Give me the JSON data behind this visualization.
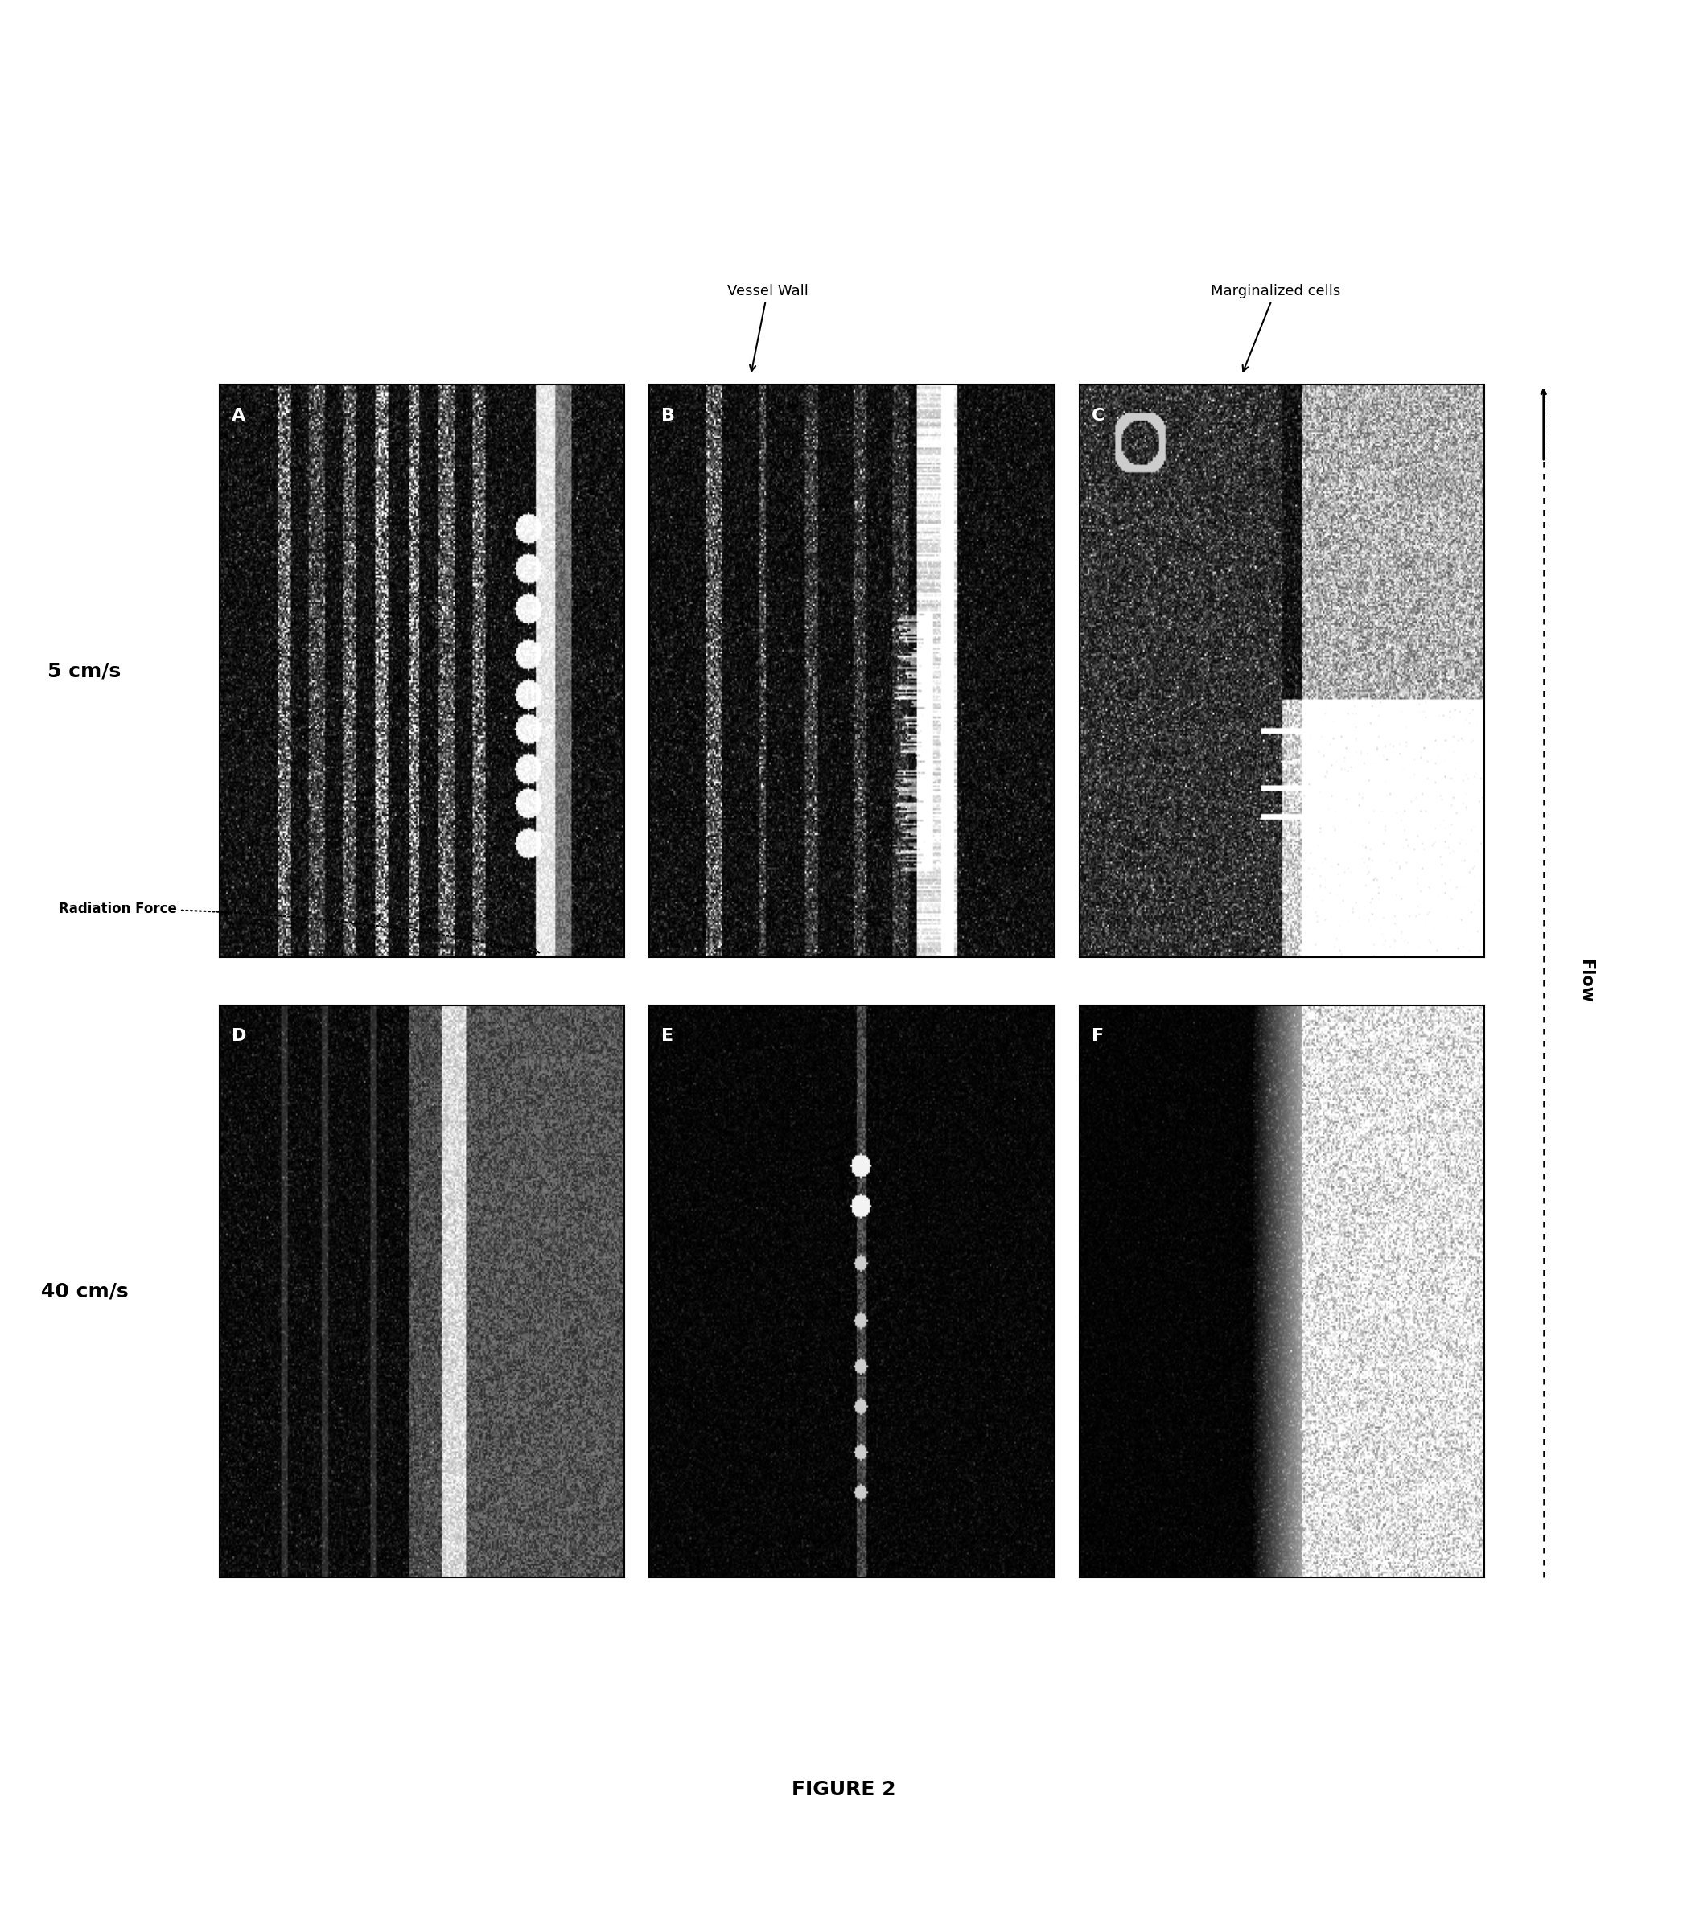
{
  "title": "FIGURE 2",
  "title_fontsize": 18,
  "title_bold": true,
  "row_labels": [
    "5 cm/s",
    "40 cm/s"
  ],
  "row_label_fontsize": 16,
  "panel_labels": [
    "A",
    "B",
    "C",
    "D",
    "E",
    "F"
  ],
  "panel_label_fontsize": 14,
  "annotation_vessel_wall": "Vessel Wall",
  "annotation_marginalized": "Marginalized cells",
  "annotation_radiation": "Radiation Force",
  "annotation_flow": "Flow",
  "annotation_fontsize": 12,
  "bg_color": "#ffffff",
  "panel_bg": "#000000",
  "figure_width": 20.97,
  "figure_height": 23.92
}
